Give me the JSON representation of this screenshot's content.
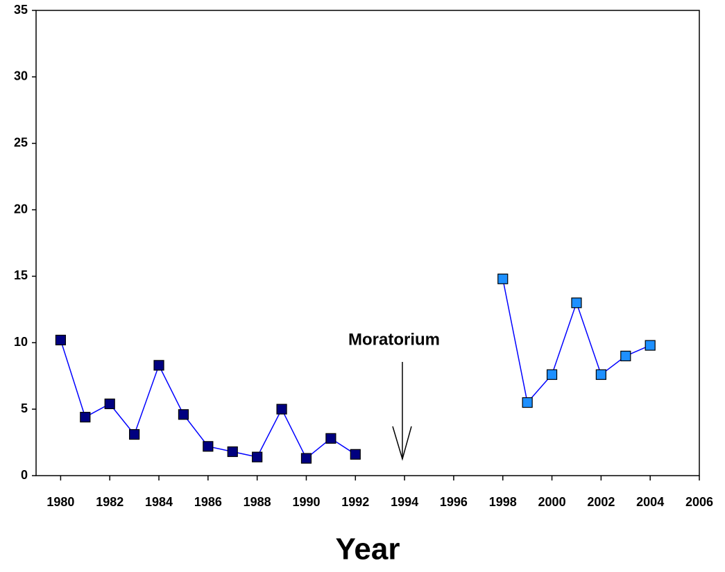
{
  "chart_data": {
    "type": "line",
    "x_label": "Year",
    "annotation": "Moratorium",
    "line_color": "#0000ff",
    "series": [
      {
        "color": "#000080",
        "x": [
          1980,
          1981,
          1982,
          1983,
          1984,
          1985,
          1986,
          1987,
          1988,
          1989,
          1990,
          1991,
          1992
        ],
        "values": [
          10.2,
          4.4,
          5.4,
          3.1,
          8.3,
          4.6,
          2.2,
          1.8,
          1.4,
          5.0,
          1.3,
          2.8,
          1.6
        ]
      },
      {
        "color": "#1e90ff",
        "x": [
          1998,
          1999,
          2000,
          2001,
          2002,
          2003,
          2004
        ],
        "values": [
          14.8,
          5.5,
          7.6,
          13.0,
          7.6,
          9.0,
          9.8
        ]
      }
    ],
    "xlim": [
      1979,
      2006
    ],
    "xticks": [
      1980,
      1982,
      1984,
      1986,
      1988,
      1990,
      1992,
      1994,
      1996,
      1998,
      2000,
      2002,
      2004,
      2006
    ],
    "ylim": [
      0,
      35
    ],
    "yticks": [
      0,
      5,
      10,
      15,
      20,
      25,
      30,
      35
    ],
    "grid": false
  }
}
